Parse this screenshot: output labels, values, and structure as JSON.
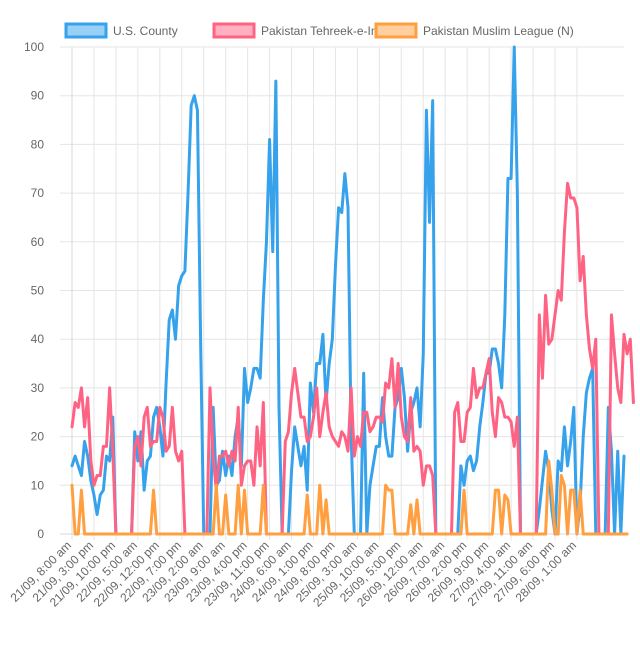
{
  "chart_data": {
    "type": "line",
    "title": "",
    "xlabel": "",
    "ylabel": "",
    "ylim": [
      0,
      100
    ],
    "yticks": [
      0,
      10,
      20,
      30,
      40,
      50,
      60,
      70,
      80,
      90,
      100
    ],
    "grid": true,
    "legend_position": "top",
    "x_tick_labels": [
      "21/09, 8:00 am",
      "21/09, 3:00 pm",
      "21/09, 10:00 pm",
      "22/09, 5:00 am",
      "22/09, 12:00 pm",
      "22/09, 7:00 pm",
      "23/09, 2:00 am",
      "23/09, 9:00 am",
      "23/09, 4:00 pm",
      "23/09, 11:00 pm",
      "24/09, 6:00 am",
      "24/09, 1:00 pm",
      "24/09, 8:00 pm",
      "25/09, 3:00 am",
      "25/09, 10:00 am",
      "25/09, 5:00 pm",
      "26/09, 12:00 am",
      "26/09, 7:00 am",
      "26/09, 2:00 pm",
      "26/09, 9:00 pm",
      "27/09, 4:00 am",
      "27/09, 11:00 am",
      "27/09, 6:00 pm",
      "28/09, 1:00 am"
    ],
    "series": [
      {
        "name": "U.S. County",
        "color": "#36a2eb",
        "fill": "#9ad0f5",
        "values": [
          14,
          16,
          14,
          12,
          19,
          16,
          11,
          8,
          4,
          8,
          9,
          16,
          15,
          24,
          0,
          0,
          0,
          0,
          0,
          0,
          21,
          15,
          21,
          9,
          15,
          16,
          24,
          26,
          22,
          16,
          31,
          44,
          46,
          40,
          51,
          53,
          54,
          70,
          88,
          90,
          87,
          40,
          0,
          0,
          0,
          26,
          10,
          11,
          17,
          12,
          16,
          12,
          20,
          24,
          14,
          34,
          27,
          30,
          34,
          34,
          32,
          48,
          60,
          81,
          58,
          93,
          26,
          0,
          0,
          0,
          13,
          22,
          18,
          14,
          18,
          9,
          31,
          25,
          35,
          35,
          41,
          27,
          35,
          40,
          55,
          67,
          66,
          74,
          67,
          20,
          0,
          0,
          0,
          33,
          0,
          10,
          14,
          18,
          18,
          28,
          20,
          16,
          16,
          26,
          28,
          34,
          28,
          17,
          25,
          27,
          30,
          22,
          37,
          87,
          64,
          89,
          0,
          0,
          0,
          0,
          0,
          0,
          0,
          0,
          14,
          10,
          15,
          16,
          13,
          15,
          22,
          27,
          33,
          33,
          38,
          38,
          35,
          30,
          45,
          73,
          73,
          100,
          70,
          0,
          0,
          0,
          0,
          0,
          0,
          5,
          11,
          17,
          13,
          5,
          0,
          15,
          13,
          22,
          14,
          19,
          26,
          0,
          6,
          20,
          29,
          32,
          34,
          0,
          0,
          0,
          0,
          26,
          17,
          0,
          17,
          0,
          16
        ]
      },
      {
        "name": "Pakistan Tehreek-e-Insaf",
        "color": "#ff6384",
        "fill": "#ffb1c1",
        "values": [
          22,
          27,
          26,
          30,
          22,
          28,
          15,
          10,
          12,
          12,
          18,
          18,
          30,
          17,
          0,
          0,
          0,
          0,
          0,
          0,
          18,
          20,
          14,
          24,
          26,
          18,
          19,
          19,
          26,
          24,
          17,
          18,
          26,
          17,
          15,
          17,
          0,
          0,
          0,
          0,
          0,
          0,
          0,
          0,
          30,
          16,
          9,
          16,
          16,
          17,
          14,
          17,
          15,
          26,
          10,
          14,
          15,
          15,
          10,
          22,
          14,
          27,
          0,
          0,
          0,
          0,
          0,
          0,
          19,
          21,
          29,
          34,
          29,
          24,
          24,
          19,
          20,
          24,
          30,
          20,
          25,
          29,
          22,
          20,
          19,
          18,
          21,
          20,
          17,
          30,
          16,
          20,
          18,
          25,
          25,
          21,
          22,
          24,
          24,
          23,
          31,
          30,
          36,
          26,
          35,
          24,
          20,
          19,
          28,
          17,
          18,
          17,
          10,
          14,
          14,
          12,
          0,
          0,
          0,
          0,
          0,
          0,
          25,
          27,
          19,
          19,
          25,
          26,
          34,
          28,
          30,
          30,
          33,
          36,
          25,
          20,
          28,
          27,
          24,
          24,
          23,
          18,
          24,
          0,
          0,
          0,
          0,
          0,
          0,
          45,
          32,
          49,
          39,
          40,
          45,
          50,
          48,
          62,
          72,
          69,
          69,
          67,
          52,
          57,
          45,
          38,
          34,
          40,
          0,
          0,
          0,
          0,
          45,
          37,
          30,
          27,
          41,
          37,
          40,
          27
        ]
      },
      {
        "name": "Pakistan Muslim League (N)",
        "color": "#ff9f40",
        "fill": "#ffcf9f",
        "values": [
          10,
          0,
          0,
          9,
          0,
          0,
          0,
          0,
          0,
          0,
          0,
          0,
          0,
          0,
          0,
          0,
          0,
          0,
          0,
          0,
          0,
          0,
          0,
          0,
          0,
          0,
          9,
          0,
          0,
          0,
          0,
          0,
          0,
          0,
          0,
          0,
          0,
          0,
          0,
          0,
          0,
          0,
          0,
          0,
          0,
          0,
          10,
          0,
          0,
          8,
          0,
          0,
          0,
          10,
          0,
          9,
          0,
          0,
          0,
          0,
          0,
          10,
          0,
          0,
          0,
          0,
          0,
          0,
          0,
          0,
          0,
          0,
          0,
          0,
          0,
          8,
          0,
          0,
          0,
          10,
          0,
          7,
          0,
          0,
          0,
          0,
          0,
          0,
          0,
          0,
          0,
          0,
          0,
          0,
          0,
          0,
          0,
          0,
          0,
          0,
          10,
          9,
          9,
          0,
          0,
          0,
          0,
          0,
          6,
          0,
          7,
          0,
          0,
          0,
          0,
          0,
          0,
          0,
          0,
          0,
          0,
          0,
          0,
          0,
          0,
          9,
          0,
          0,
          0,
          0,
          0,
          0,
          0,
          0,
          0,
          9,
          9,
          0,
          8,
          7,
          0,
          0,
          0,
          0,
          0,
          0,
          0,
          0,
          0,
          0,
          0,
          0,
          15,
          9,
          0,
          0,
          12,
          10,
          0,
          9,
          9,
          0,
          9,
          0,
          0,
          0,
          0,
          0,
          0,
          0,
          0,
          0,
          0,
          0,
          0,
          0,
          0,
          0
        ]
      }
    ]
  }
}
